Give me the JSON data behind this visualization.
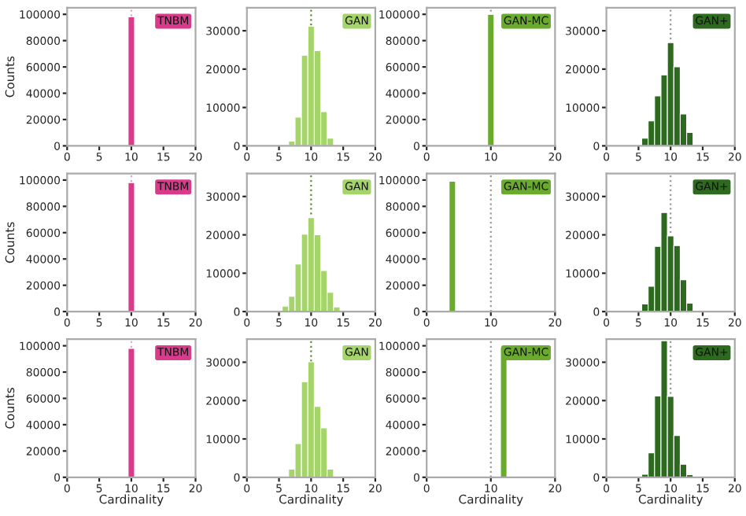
{
  "chart_data": [
    {
      "type": "histogram",
      "color": "#d93a8a",
      "ylabel": "Counts",
      "annotations": [
        "TNBM"
      ],
      "bins": [
        9.5,
        10.5
      ],
      "values": [
        98000
      ],
      "xlim": [
        0,
        20
      ],
      "xticks": [
        0,
        5,
        10,
        15,
        20
      ],
      "ylim": [
        0,
        105000
      ],
      "yticks": [
        0,
        20000,
        40000,
        60000,
        80000,
        100000
      ],
      "ref_lines": [
        {
          "axis": "x",
          "value": 10,
          "color": "#f0a0c8",
          "line_style": "dotted"
        }
      ],
      "grid": false
    },
    {
      "type": "histogram",
      "color": "#a5d46a",
      "annotations": [
        "GAN"
      ],
      "bins": [
        6.5,
        7.5,
        8.5,
        9.5,
        10.5,
        11.5,
        12.5,
        13.5
      ],
      "values": [
        1200,
        7500,
        23600,
        31200,
        24800,
        8900,
        2000
      ],
      "xlim": [
        0,
        20
      ],
      "xticks": [
        0,
        5,
        10,
        15,
        20
      ],
      "ylim": [
        0,
        36000
      ],
      "yticks": [
        0,
        10000,
        20000,
        30000
      ],
      "ref_lines": [
        {
          "axis": "x",
          "value": 10,
          "color": "#5a8a3a",
          "line_style": "dotted"
        }
      ],
      "grid": false
    },
    {
      "type": "histogram",
      "color": "#6aab2e",
      "annotations": [
        "GAN-MC"
      ],
      "bins": [
        9.5,
        10.5
      ],
      "values": [
        100000
      ],
      "xlim": [
        0,
        20
      ],
      "xticks": [
        0,
        10,
        20
      ],
      "ylim": [
        0,
        105000
      ],
      "yticks": [
        0,
        20000,
        40000,
        60000,
        80000,
        100000
      ],
      "ref_lines": [
        {
          "axis": "x",
          "value": 10,
          "color": "#999999",
          "line_style": "dotted"
        }
      ],
      "grid": false
    },
    {
      "type": "histogram",
      "color": "#2d6a1f",
      "annotations": [
        "GAN+"
      ],
      "bins": [
        4.5,
        5.5,
        6.5,
        7.5,
        8.5,
        9.5,
        10.5,
        11.5,
        12.5,
        13.5,
        14.5
      ],
      "values": [
        200,
        2000,
        6500,
        13000,
        18500,
        26900,
        20600,
        8300,
        3500,
        null
      ],
      "xlim": [
        0,
        20
      ],
      "xticks": [
        0,
        5,
        10,
        15,
        20
      ],
      "ylim": [
        0,
        36000
      ],
      "yticks": [
        0,
        10000,
        20000,
        30000
      ],
      "ref_lines": [
        {
          "axis": "x",
          "value": 10,
          "color": "#999999",
          "line_style": "dotted"
        }
      ],
      "grid": false
    },
    {
      "type": "histogram",
      "color": "#d93a8a",
      "ylabel": "Counts",
      "annotations": [
        "TNBM"
      ],
      "bins": [
        9.5,
        10.5
      ],
      "values": [
        98000
      ],
      "xlim": [
        0,
        20
      ],
      "xticks": [
        0,
        5,
        10,
        15,
        20
      ],
      "ylim": [
        0,
        105000
      ],
      "yticks": [
        0,
        20000,
        40000,
        60000,
        80000,
        100000
      ],
      "ref_lines": [
        {
          "axis": "x",
          "value": 10,
          "color": "#f0a0c8",
          "line_style": "dotted"
        }
      ],
      "grid": false
    },
    {
      "type": "histogram",
      "color": "#a5d46a",
      "annotations": [
        "GAN"
      ],
      "bins": [
        4.5,
        5.5,
        6.5,
        7.5,
        8.5,
        9.5,
        10.5,
        11.5,
        12.5,
        13.5,
        14.5
      ],
      "values": [
        300,
        1400,
        4000,
        12400,
        20200,
        24500,
        20000,
        10700,
        5000,
        1200
      ],
      "xlim": [
        0,
        20
      ],
      "xticks": [
        0,
        5,
        10,
        15,
        20
      ],
      "ylim": [
        0,
        36000
      ],
      "yticks": [
        0,
        10000,
        20000,
        30000
      ],
      "ref_lines": [
        {
          "axis": "x",
          "value": 10,
          "color": "#5a8a3a",
          "line_style": "dotted"
        }
      ],
      "grid": false
    },
    {
      "type": "histogram",
      "color": "#6aab2e",
      "annotations": [
        "GAN-MC"
      ],
      "bins": [
        3.5,
        4.5
      ],
      "values": [
        99000
      ],
      "xlim": [
        0,
        20
      ],
      "xticks": [
        0,
        10,
        20
      ],
      "ylim": [
        0,
        105000
      ],
      "yticks": [
        0,
        20000,
        40000,
        60000,
        80000,
        100000
      ],
      "ref_lines": [
        {
          "axis": "x",
          "value": 10,
          "color": "#999999",
          "line_style": "dotted"
        }
      ],
      "grid": false
    },
    {
      "type": "histogram",
      "color": "#2d6a1f",
      "annotations": [
        "GAN+"
      ],
      "bins": [
        5.5,
        6.5,
        7.5,
        8.5,
        9.5,
        10.5,
        11.5,
        12.5,
        13.5,
        14.5
      ],
      "values": [
        2000,
        6600,
        17000,
        25800,
        19700,
        17200,
        8300,
        2200,
        null
      ],
      "xlim": [
        0,
        20
      ],
      "xticks": [
        0,
        5,
        10,
        15,
        20
      ],
      "ylim": [
        0,
        36000
      ],
      "yticks": [
        0,
        10000,
        20000,
        30000
      ],
      "ref_lines": [
        {
          "axis": "x",
          "value": 10,
          "color": "#999999",
          "line_style": "dotted"
        }
      ],
      "grid": false
    },
    {
      "type": "histogram",
      "color": "#d93a8a",
      "ylabel": "Counts",
      "xlabel": "Cardinality",
      "annotations": [
        "TNBM"
      ],
      "bins": [
        9.5,
        10.5
      ],
      "values": [
        98000
      ],
      "xlim": [
        0,
        20
      ],
      "xticks": [
        0,
        5,
        10,
        15,
        20
      ],
      "ylim": [
        0,
        105000
      ],
      "yticks": [
        0,
        20000,
        40000,
        60000,
        80000,
        100000
      ],
      "ref_lines": [
        {
          "axis": "x",
          "value": 10,
          "color": "#f0a0c8",
          "line_style": "dotted"
        }
      ],
      "grid": false
    },
    {
      "type": "histogram",
      "color": "#a5d46a",
      "xlabel": "Cardinality",
      "annotations": [
        "GAN"
      ],
      "bins": [
        6.5,
        7.5,
        8.5,
        9.5,
        10.5,
        11.5,
        12.5,
        13.5
      ],
      "values": [
        2100,
        8800,
        24900,
        30100,
        18500,
        12900,
        2100
      ],
      "xlim": [
        0,
        20
      ],
      "xticks": [
        0,
        5,
        10,
        15,
        20
      ],
      "ylim": [
        0,
        36000
      ],
      "yticks": [
        0,
        10000,
        20000,
        30000
      ],
      "ref_lines": [
        {
          "axis": "x",
          "value": 10,
          "color": "#5a8a3a",
          "line_style": "dotted"
        }
      ],
      "grid": false
    },
    {
      "type": "histogram",
      "color": "#6aab2e",
      "xlabel": "Cardinality",
      "annotations": [
        "GAN-MC"
      ],
      "bins": [
        11.5,
        12.5
      ],
      "values": [
        99000
      ],
      "xlim": [
        0,
        20
      ],
      "xticks": [
        0,
        10,
        20
      ],
      "ylim": [
        0,
        105000
      ],
      "yticks": [
        0,
        20000,
        40000,
        60000,
        80000,
        100000
      ],
      "ref_lines": [
        {
          "axis": "x",
          "value": 10,
          "color": "#999999",
          "line_style": "dotted"
        }
      ],
      "grid": false
    },
    {
      "type": "histogram",
      "color": "#2d6a1f",
      "xlabel": "Cardinality",
      "annotations": [
        "GAN+"
      ],
      "bins": [
        4.5,
        5.5,
        6.5,
        7.5,
        8.5,
        9.5,
        10.5,
        11.5,
        12.5,
        13.5
      ],
      "values": [
        300,
        800,
        6400,
        21200,
        35600,
        21100,
        10900,
        3400,
        700
      ],
      "xlim": [
        0,
        20
      ],
      "xticks": [
        0,
        5,
        10,
        15,
        20
      ],
      "ylim": [
        0,
        36000
      ],
      "yticks": [
        0,
        10000,
        20000,
        30000
      ],
      "ref_lines": [
        {
          "axis": "x",
          "value": 10,
          "color": "#999999",
          "line_style": "dotted"
        }
      ],
      "grid": false
    }
  ]
}
